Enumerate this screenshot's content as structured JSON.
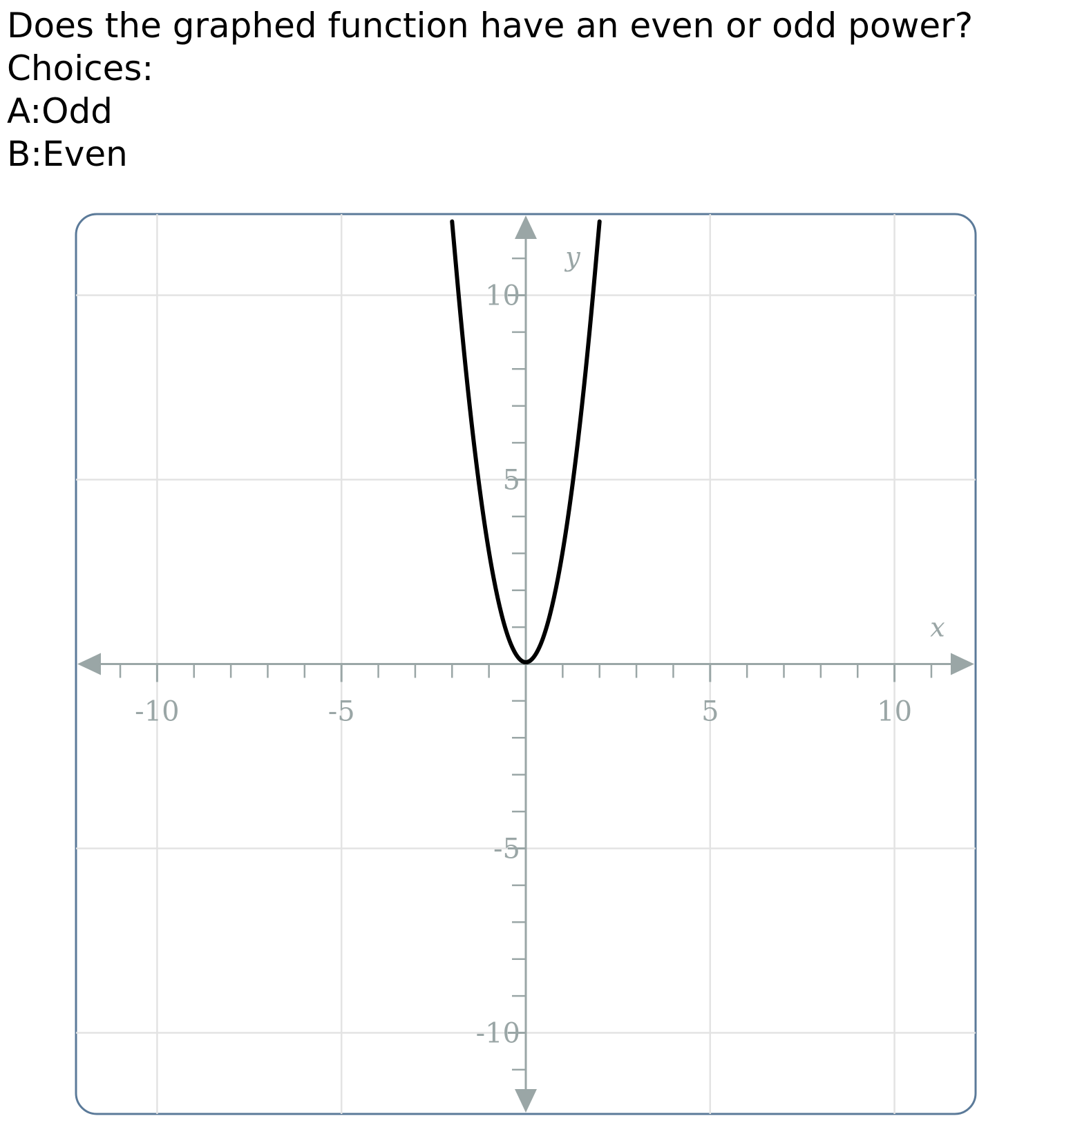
{
  "question": {
    "text": "Does the graphed function have an even or odd power?",
    "choices_label": "Choices:",
    "choices": [
      {
        "label": "A:Odd"
      },
      {
        "label": "B:Even"
      }
    ]
  },
  "chart_data": {
    "type": "line",
    "title": "",
    "xlabel": "x",
    "ylabel": "y",
    "xlim": [
      -12.2,
      12.2
    ],
    "ylim": [
      -12.2,
      12.2
    ],
    "grid": true,
    "x_tick_labels": [
      {
        "value": -10,
        "label": "-10"
      },
      {
        "value": -5,
        "label": "-5"
      },
      {
        "value": 5,
        "label": "5"
      },
      {
        "value": 10,
        "label": "10"
      }
    ],
    "y_tick_labels": [
      {
        "value": 10,
        "label": "10"
      },
      {
        "value": 5,
        "label": "5"
      },
      {
        "value": -5,
        "label": "-5"
      },
      {
        "value": -10,
        "label": "-10"
      }
    ],
    "series": [
      {
        "function": "y = 3x^2",
        "color": "#000000",
        "x": [
          -2.0,
          -1.75,
          -1.5,
          -1.25,
          -1.0,
          -0.75,
          -0.5,
          -0.25,
          0,
          0.25,
          0.5,
          0.75,
          1.0,
          1.25,
          1.5,
          1.75,
          2.0
        ],
        "y": [
          12.0,
          9.19,
          6.75,
          4.69,
          3.0,
          1.69,
          0.75,
          0.19,
          0,
          0.19,
          0.75,
          1.69,
          3.0,
          4.69,
          6.75,
          9.19,
          12.0
        ]
      }
    ],
    "colors": {
      "grid": "#e3e3e3",
      "axis": "#9aa6a6",
      "border": "#5b7a99",
      "curve": "#000000"
    }
  }
}
